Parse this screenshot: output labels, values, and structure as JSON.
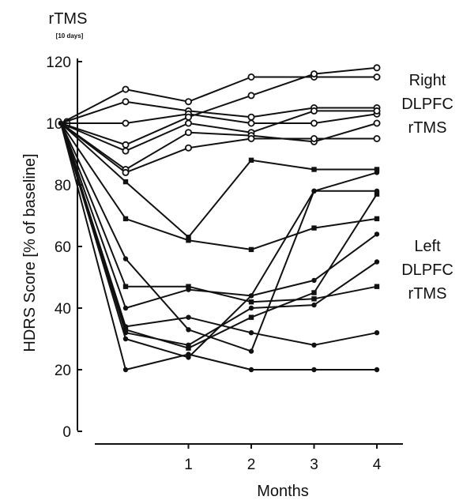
{
  "chart_data": {
    "type": "line",
    "title": "",
    "xlabel": "Months",
    "ylabel": "HDRS Score [% of baseline]",
    "xlim": [
      -1,
      4
    ],
    "ylim": [
      0,
      120
    ],
    "x": [
      -1,
      0,
      1,
      2,
      3,
      4
    ],
    "x_ticks": [
      1,
      2,
      3,
      4
    ],
    "y_ticks": [
      0,
      20,
      40,
      60,
      80,
      100,
      120
    ],
    "grid": false,
    "legend": "none",
    "annotations": {
      "stimulation_label": "rTMS",
      "stimulation_sublabel": "[10 days]",
      "right_group": [
        "Right",
        "DLPFC",
        "rTMS"
      ],
      "left_group": [
        "Left",
        "DLPFC",
        "rTMS"
      ]
    },
    "series": [
      {
        "group": "right",
        "marker": "open-circle",
        "values": [
          100,
          111,
          107,
          115,
          115,
          115
        ]
      },
      {
        "group": "right",
        "marker": "open-circle",
        "values": [
          100,
          107,
          104,
          102,
          105,
          105
        ]
      },
      {
        "group": "right",
        "marker": "open-circle",
        "values": [
          100,
          100,
          103,
          100,
          100,
          103
        ]
      },
      {
        "group": "right",
        "marker": "open-circle",
        "values": [
          100,
          93,
          102,
          109,
          116,
          118
        ]
      },
      {
        "group": "right",
        "marker": "open-circle",
        "values": [
          100,
          91,
          100,
          97,
          104,
          104
        ]
      },
      {
        "group": "right",
        "marker": "open-circle",
        "values": [
          100,
          85,
          97,
          96,
          94,
          100
        ]
      },
      {
        "group": "right",
        "marker": "open-circle",
        "values": [
          100,
          84,
          92,
          95,
          95,
          95
        ]
      },
      {
        "group": "left",
        "marker": "filled-square",
        "values": [
          100,
          81,
          63,
          88,
          85,
          85
        ]
      },
      {
        "group": "left",
        "marker": "filled-square",
        "values": [
          100,
          69,
          62,
          59,
          66,
          69
        ]
      },
      {
        "group": "left",
        "marker": "filled-circle",
        "values": [
          100,
          56,
          33,
          26,
          78,
          78
        ]
      },
      {
        "group": "left",
        "marker": "filled-square",
        "values": [
          100,
          47,
          47,
          42,
          43,
          47
        ]
      },
      {
        "group": "left",
        "marker": "filled-circle",
        "values": [
          100,
          40,
          46,
          44,
          49,
          64
        ]
      },
      {
        "group": "left",
        "marker": "filled-circle",
        "values": [
          100,
          34,
          37,
          32,
          28,
          32
        ]
      },
      {
        "group": "left",
        "marker": "filled-square",
        "values": [
          100,
          33,
          27,
          37,
          45,
          77
        ]
      },
      {
        "group": "left",
        "marker": "filled-circle",
        "values": [
          100,
          32,
          28,
          40,
          41,
          55
        ]
      },
      {
        "group": "left",
        "marker": "filled-circle",
        "values": [
          100,
          30,
          24,
          44,
          78,
          84
        ]
      },
      {
        "group": "left",
        "marker": "filled-circle",
        "values": [
          100,
          20,
          25,
          20,
          20,
          20
        ]
      }
    ]
  }
}
